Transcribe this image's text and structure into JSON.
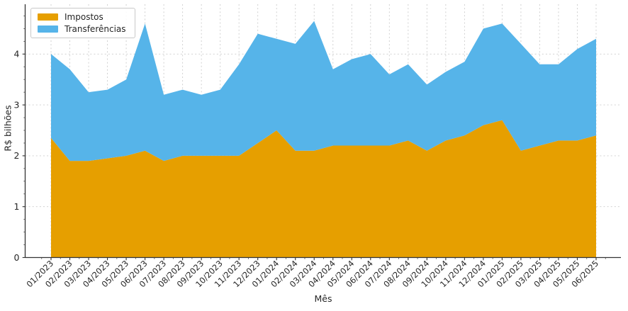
{
  "chart_data": {
    "type": "area",
    "stacked": true,
    "title": "",
    "xlabel": "Mês",
    "ylabel": "R$ bilhões",
    "categories": [
      "01/2023",
      "02/2023",
      "03/2023",
      "04/2023",
      "05/2023",
      "06/2023",
      "07/2023",
      "08/2023",
      "09/2023",
      "10/2023",
      "11/2023",
      "12/2023",
      "01/2024",
      "02/2024",
      "03/2024",
      "04/2024",
      "05/2024",
      "06/2024",
      "07/2024",
      "08/2024",
      "09/2024",
      "10/2024",
      "11/2024",
      "12/2024",
      "01/2025",
      "02/2025",
      "03/2025",
      "04/2025",
      "05/2025",
      "06/2025"
    ],
    "series": [
      {
        "name": "Impostos",
        "color": "#E69F00",
        "values": [
          2.35,
          1.9,
          1.9,
          1.95,
          2.0,
          2.1,
          1.9,
          2.0,
          2.0,
          2.0,
          2.0,
          2.25,
          2.5,
          2.1,
          2.1,
          2.2,
          2.2,
          2.2,
          2.2,
          2.3,
          2.1,
          2.3,
          2.4,
          2.6,
          2.7,
          2.1,
          2.2,
          2.3,
          2.3,
          2.4
        ]
      },
      {
        "name": "Transferências",
        "color": "#56B4E9",
        "values": [
          1.65,
          1.8,
          1.35,
          1.35,
          1.5,
          2.5,
          1.3,
          1.3,
          1.2,
          1.3,
          1.8,
          2.15,
          1.8,
          2.1,
          2.55,
          1.5,
          1.7,
          1.8,
          1.4,
          1.5,
          1.3,
          1.35,
          1.45,
          1.9,
          1.9,
          2.1,
          1.6,
          1.5,
          1.8,
          1.9
        ]
      }
    ],
    "stacked_totals": [
      4.0,
      3.7,
      3.25,
      3.3,
      3.5,
      4.6,
      3.2,
      3.3,
      3.2,
      3.3,
      3.8,
      4.4,
      4.3,
      4.2,
      4.65,
      3.7,
      3.9,
      4.0,
      3.6,
      3.8,
      3.4,
      3.65,
      3.85,
      4.5,
      4.6,
      4.2,
      3.8,
      3.8,
      4.1,
      4.3
    ],
    "yticks": [
      "0",
      "1",
      "2",
      "3",
      "4"
    ],
    "ylim": [
      0,
      4.97
    ],
    "grid": "dashed-both-axes",
    "grid_color": "#cccccc",
    "axis_color": "#333333",
    "text_color": "#262626",
    "legend_position": "upper-left"
  }
}
